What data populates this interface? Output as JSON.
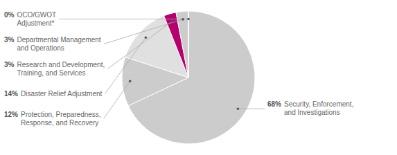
{
  "chart_data": {
    "type": "pie",
    "categories": [
      "Security, Enforcement,\nand Investigations",
      "Protection, Preparedness,\nResponse, and Recovery",
      "Disaster Relief Adjustment",
      "Research and Development,\nTraining, and Services",
      "Departmental Management\nand Operations",
      "OCO/GWOT\nAdjustment*"
    ],
    "values": [
      68,
      12,
      14,
      3,
      3,
      0.01
    ],
    "value_labels": [
      "68%",
      "12%",
      "14%",
      "3%",
      "3%",
      "0%"
    ],
    "colors": [
      "#cccccc",
      "#cccccc",
      "#e0e0e0",
      "#b5006e",
      "#cccccc",
      "#cccccc"
    ]
  }
}
